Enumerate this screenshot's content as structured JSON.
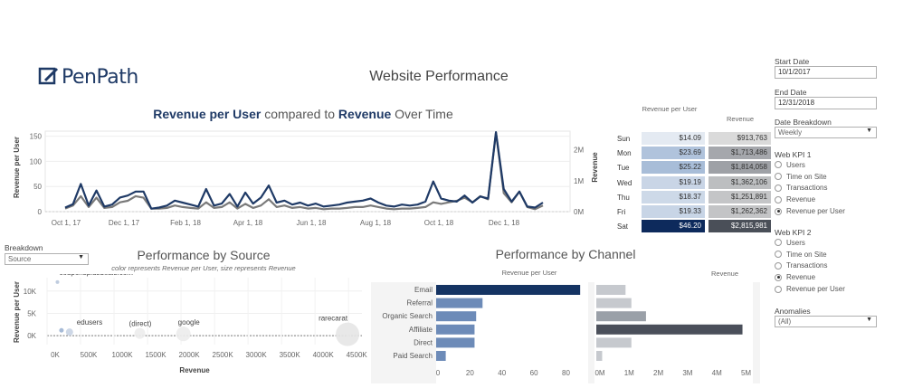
{
  "header": {
    "logo_text": "PenPath",
    "page_title": "Website Performance"
  },
  "time_chart": {
    "title_kpi1": "Revenue per User",
    "title_mid": " compared to ",
    "title_kpi2": "Revenue",
    "title_end": " Over Time",
    "ylabel_left": "Revenue per User",
    "ylabel_right": "Revenue"
  },
  "day_table": {
    "col1_header": "Revenue per User",
    "col2_header": "Revenue"
  },
  "breakdown": {
    "label": "Breakdown",
    "value": "Source"
  },
  "source_chart": {
    "title": "Performance by Source",
    "subtitle": "color represents Revenue per User, size represents Revenue",
    "xlabel": "Revenue",
    "ylabel": "Revenue per User"
  },
  "channel_chart": {
    "title": "Performance by Channel",
    "col1_header": "Revenue per User",
    "col2_header": "Revenue"
  },
  "controls": {
    "start_date_label": "Start Date",
    "start_date_value": "10/1/2017",
    "end_date_label": "End Date",
    "end_date_value": "12/31/2018",
    "date_breakdown_label": "Date Breakdown",
    "date_breakdown_value": "Weekly",
    "kpi1_label": "Web KPI 1",
    "kpi1_options": [
      "Users",
      "Time on Site",
      "Transactions",
      "Revenue",
      "Revenue per User"
    ],
    "kpi1_selected": 4,
    "kpi2_label": "Web KPI 2",
    "kpi2_options": [
      "Users",
      "Time on Site",
      "Transactions",
      "Revenue",
      "Revenue per User"
    ],
    "kpi2_selected": 3,
    "anomalies_label": "Anomalies",
    "anomalies_value": "(All)"
  },
  "colors": {
    "navy": "#1f3a66",
    "gray_line": "#7a7a7a"
  },
  "chart_data": [
    {
      "type": "line",
      "name": "revenue-over-time",
      "x_ticks": [
        "Oct 1, 17",
        "Dec 1, 17",
        "Feb 1, 18",
        "Apr 1, 18",
        "Jun 1, 18",
        "Aug 1, 18",
        "Oct 1, 18",
        "Dec 1, 18"
      ],
      "y_left_ticks": [
        "150",
        "100",
        "50",
        "0"
      ],
      "y_left_lim": [
        0,
        160
      ],
      "y_right_ticks": [
        "2M",
        "1M",
        "0M"
      ],
      "y_right_lim": [
        0,
        2.6
      ],
      "series": [
        {
          "name": "Revenue per User",
          "axis": "left",
          "values": [
            8,
            15,
            55,
            12,
            42,
            10,
            14,
            28,
            32,
            40,
            40,
            6,
            8,
            12,
            22,
            18,
            14,
            10,
            45,
            12,
            16,
            35,
            10,
            38,
            16,
            28,
            52,
            18,
            22,
            14,
            18,
            12,
            16,
            10,
            12,
            14,
            18,
            20,
            22,
            26,
            18,
            12,
            10,
            14,
            12,
            14,
            20,
            60,
            26,
            22,
            20,
            32,
            18,
            30,
            26,
            158,
            45,
            20,
            40,
            10,
            8,
            18
          ]
        },
        {
          "name": "Revenue",
          "axis": "right",
          "values": [
            0.1,
            0.2,
            0.5,
            0.15,
            0.45,
            0.12,
            0.15,
            0.3,
            0.35,
            0.5,
            0.45,
            0.1,
            0.1,
            0.12,
            0.2,
            0.15,
            0.12,
            0.1,
            0.3,
            0.12,
            0.15,
            0.3,
            0.1,
            0.25,
            0.12,
            0.2,
            0.4,
            0.15,
            0.2,
            0.12,
            0.15,
            0.1,
            0.12,
            0.08,
            0.1,
            0.1,
            0.12,
            0.15,
            0.15,
            0.2,
            0.15,
            0.1,
            0.08,
            0.1,
            0.1,
            0.12,
            0.15,
            0.3,
            0.25,
            0.3,
            0.35,
            0.45,
            0.3,
            0.5,
            0.4,
            2.55,
            0.6,
            0.3,
            0.65,
            0.15,
            0.08,
            0.2
          ]
        }
      ]
    },
    {
      "type": "table",
      "name": "day-of-week",
      "rows": [
        {
          "day": "Sun",
          "rpu": "$14.09",
          "revenue": "$913,763",
          "rpu_value": 14.09,
          "revenue_value": 913763
        },
        {
          "day": "Mon",
          "rpu": "$23.69",
          "revenue": "$1,713,486",
          "rpu_value": 23.69,
          "revenue_value": 1713486
        },
        {
          "day": "Tue",
          "rpu": "$25.22",
          "revenue": "$1,814,058",
          "rpu_value": 25.22,
          "revenue_value": 1814058
        },
        {
          "day": "Wed",
          "rpu": "$19.19",
          "revenue": "$1,362,106",
          "rpu_value": 19.19,
          "revenue_value": 1362106
        },
        {
          "day": "Thu",
          "rpu": "$18.37",
          "revenue": "$1,251,891",
          "rpu_value": 18.37,
          "revenue_value": 1251891
        },
        {
          "day": "Fri",
          "rpu": "$19.33",
          "revenue": "$1,262,362",
          "rpu_value": 19.33,
          "revenue_value": 1262362
        },
        {
          "day": "Sat",
          "rpu": "$46.20",
          "revenue": "$2,815,981",
          "rpu_value": 46.2,
          "revenue_value": 2815981
        }
      ]
    },
    {
      "type": "scatter",
      "name": "performance-by-source",
      "x_ticks": [
        "0K",
        "500K",
        "1000K",
        "1500K",
        "2000K",
        "2500K",
        "3000K",
        "3500K",
        "4000K",
        "4500K"
      ],
      "xlim": [
        0,
        4700000
      ],
      "y_ticks": [
        "10K",
        "5K",
        "0K"
      ],
      "ylim": [
        -2000,
        13000
      ],
      "points": [
        {
          "label": "couponsplusdeals.com",
          "x": 20000,
          "y": 12000
        },
        {
          "label": "edusers",
          "x": 200000,
          "y": 800
        },
        {
          "label": "(direct)",
          "x": 1250000,
          "y": 500
        },
        {
          "label": "google",
          "x": 1900000,
          "y": 400
        },
        {
          "label": "rarecarat",
          "x": 4350000,
          "y": 300
        }
      ]
    },
    {
      "type": "bar",
      "name": "performance-by-channel",
      "categories": [
        "Email",
        "Referral",
        "Organic Search",
        "Affiliate",
        "Direct",
        "Paid Search"
      ],
      "rpu_values": [
        90,
        29,
        25,
        24,
        24,
        6
      ],
      "rpu_ticks": [
        "0",
        "20",
        "40",
        "60",
        "80"
      ],
      "rpu_lim": [
        0,
        95
      ],
      "revenue_values": [
        1.0,
        1.2,
        1.7,
        5.0,
        1.2,
        0.2
      ],
      "revenue_ticks": [
        "0M",
        "1M",
        "2M",
        "3M",
        "4M",
        "5M"
      ],
      "revenue_lim": [
        0,
        5.2
      ]
    }
  ]
}
